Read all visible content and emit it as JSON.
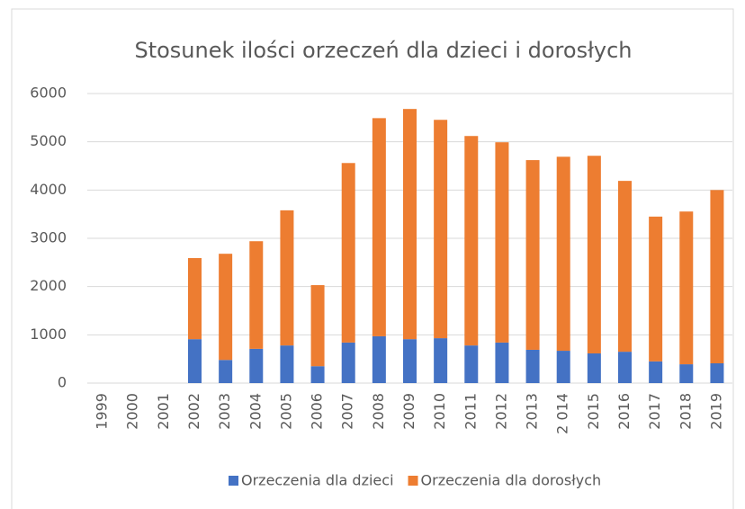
{
  "chart_data": {
    "type": "stacked_bar",
    "title": "Stosunek ilości orzeczeń dla dzieci i dorosłych",
    "categories": [
      "1999",
      "2000",
      "2001",
      "2002",
      "2003",
      "2004",
      "2005",
      "2006",
      "2007",
      "2008",
      "2009",
      "2010",
      "2011",
      "2012",
      "2013",
      "2 014",
      "2015",
      "2016",
      "2017",
      "2018",
      "2019"
    ],
    "series": [
      {
        "name": "Orzeczenia dla dzieci",
        "color": "#4472c4",
        "values": [
          null,
          null,
          null,
          910,
          480,
          710,
          780,
          350,
          840,
          970,
          910,
          930,
          780,
          840,
          690,
          670,
          615,
          650,
          450,
          390,
          410
        ]
      },
      {
        "name": "Orzeczenia dla dorosłych",
        "color": "#ed7d31",
        "values": [
          null,
          null,
          null,
          1680,
          2200,
          2230,
          2800,
          1680,
          3720,
          4520,
          4770,
          4525,
          4340,
          4150,
          3930,
          4020,
          4095,
          3540,
          3000,
          3165,
          3590
        ]
      }
    ],
    "ylim": [
      0,
      6000
    ],
    "yticks": [
      0,
      1000,
      2000,
      3000,
      4000,
      5000,
      6000
    ],
    "grid": true,
    "legend": "bottom"
  }
}
